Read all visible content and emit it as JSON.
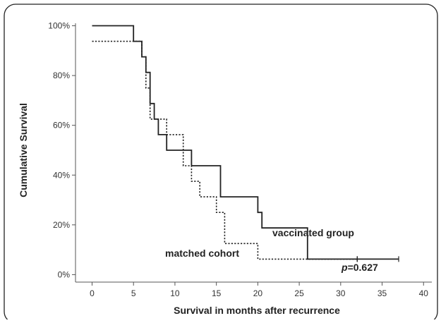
{
  "chart_data": {
    "type": "line",
    "step": true,
    "xlabel": "Survival in months after recurrence",
    "ylabel": "Cumulative Survival",
    "xlim": [
      -2,
      41
    ],
    "ylim": [
      -3,
      101
    ],
    "xticks": [
      0,
      5,
      10,
      15,
      20,
      25,
      30,
      35,
      40
    ],
    "yticks": [
      0,
      20,
      40,
      60,
      80,
      100
    ],
    "ytick_labels": [
      "0%",
      "20%",
      "40%",
      "60%",
      "80%",
      "100%"
    ],
    "grid": false,
    "series": [
      {
        "name": "vaccinated group",
        "style": "solid",
        "color": "#222222",
        "x": [
          0,
          4,
          5,
          6,
          6.5,
          7,
          7.5,
          8,
          9,
          12,
          14.5,
          15.5,
          18.5,
          20,
          20.5,
          26,
          37
        ],
        "y": [
          100,
          100,
          93.75,
          87.5,
          81.25,
          68.75,
          62.5,
          56.25,
          50,
          43.75,
          43.75,
          31.25,
          31.25,
          25,
          18.75,
          6.25,
          6.25
        ],
        "censor_x": [
          32,
          37
        ]
      },
      {
        "name": "matched cohort",
        "style": "dotted",
        "color": "#222222",
        "x": [
          0,
          2,
          6,
          6.5,
          7,
          7.5,
          9,
          11,
          12,
          13,
          15,
          16,
          20,
          32
        ],
        "y": [
          93.75,
          93.75,
          87.5,
          75,
          62.5,
          62.5,
          56.25,
          43.75,
          37.5,
          31.25,
          25,
          12.5,
          6.25,
          6.25
        ],
        "censor_x": [
          32
        ]
      }
    ],
    "annotations": {
      "vaccinated": "vaccinated group",
      "matched": "matched cohort",
      "p_prefix": "p",
      "p_suffix": "=0.627"
    }
  }
}
